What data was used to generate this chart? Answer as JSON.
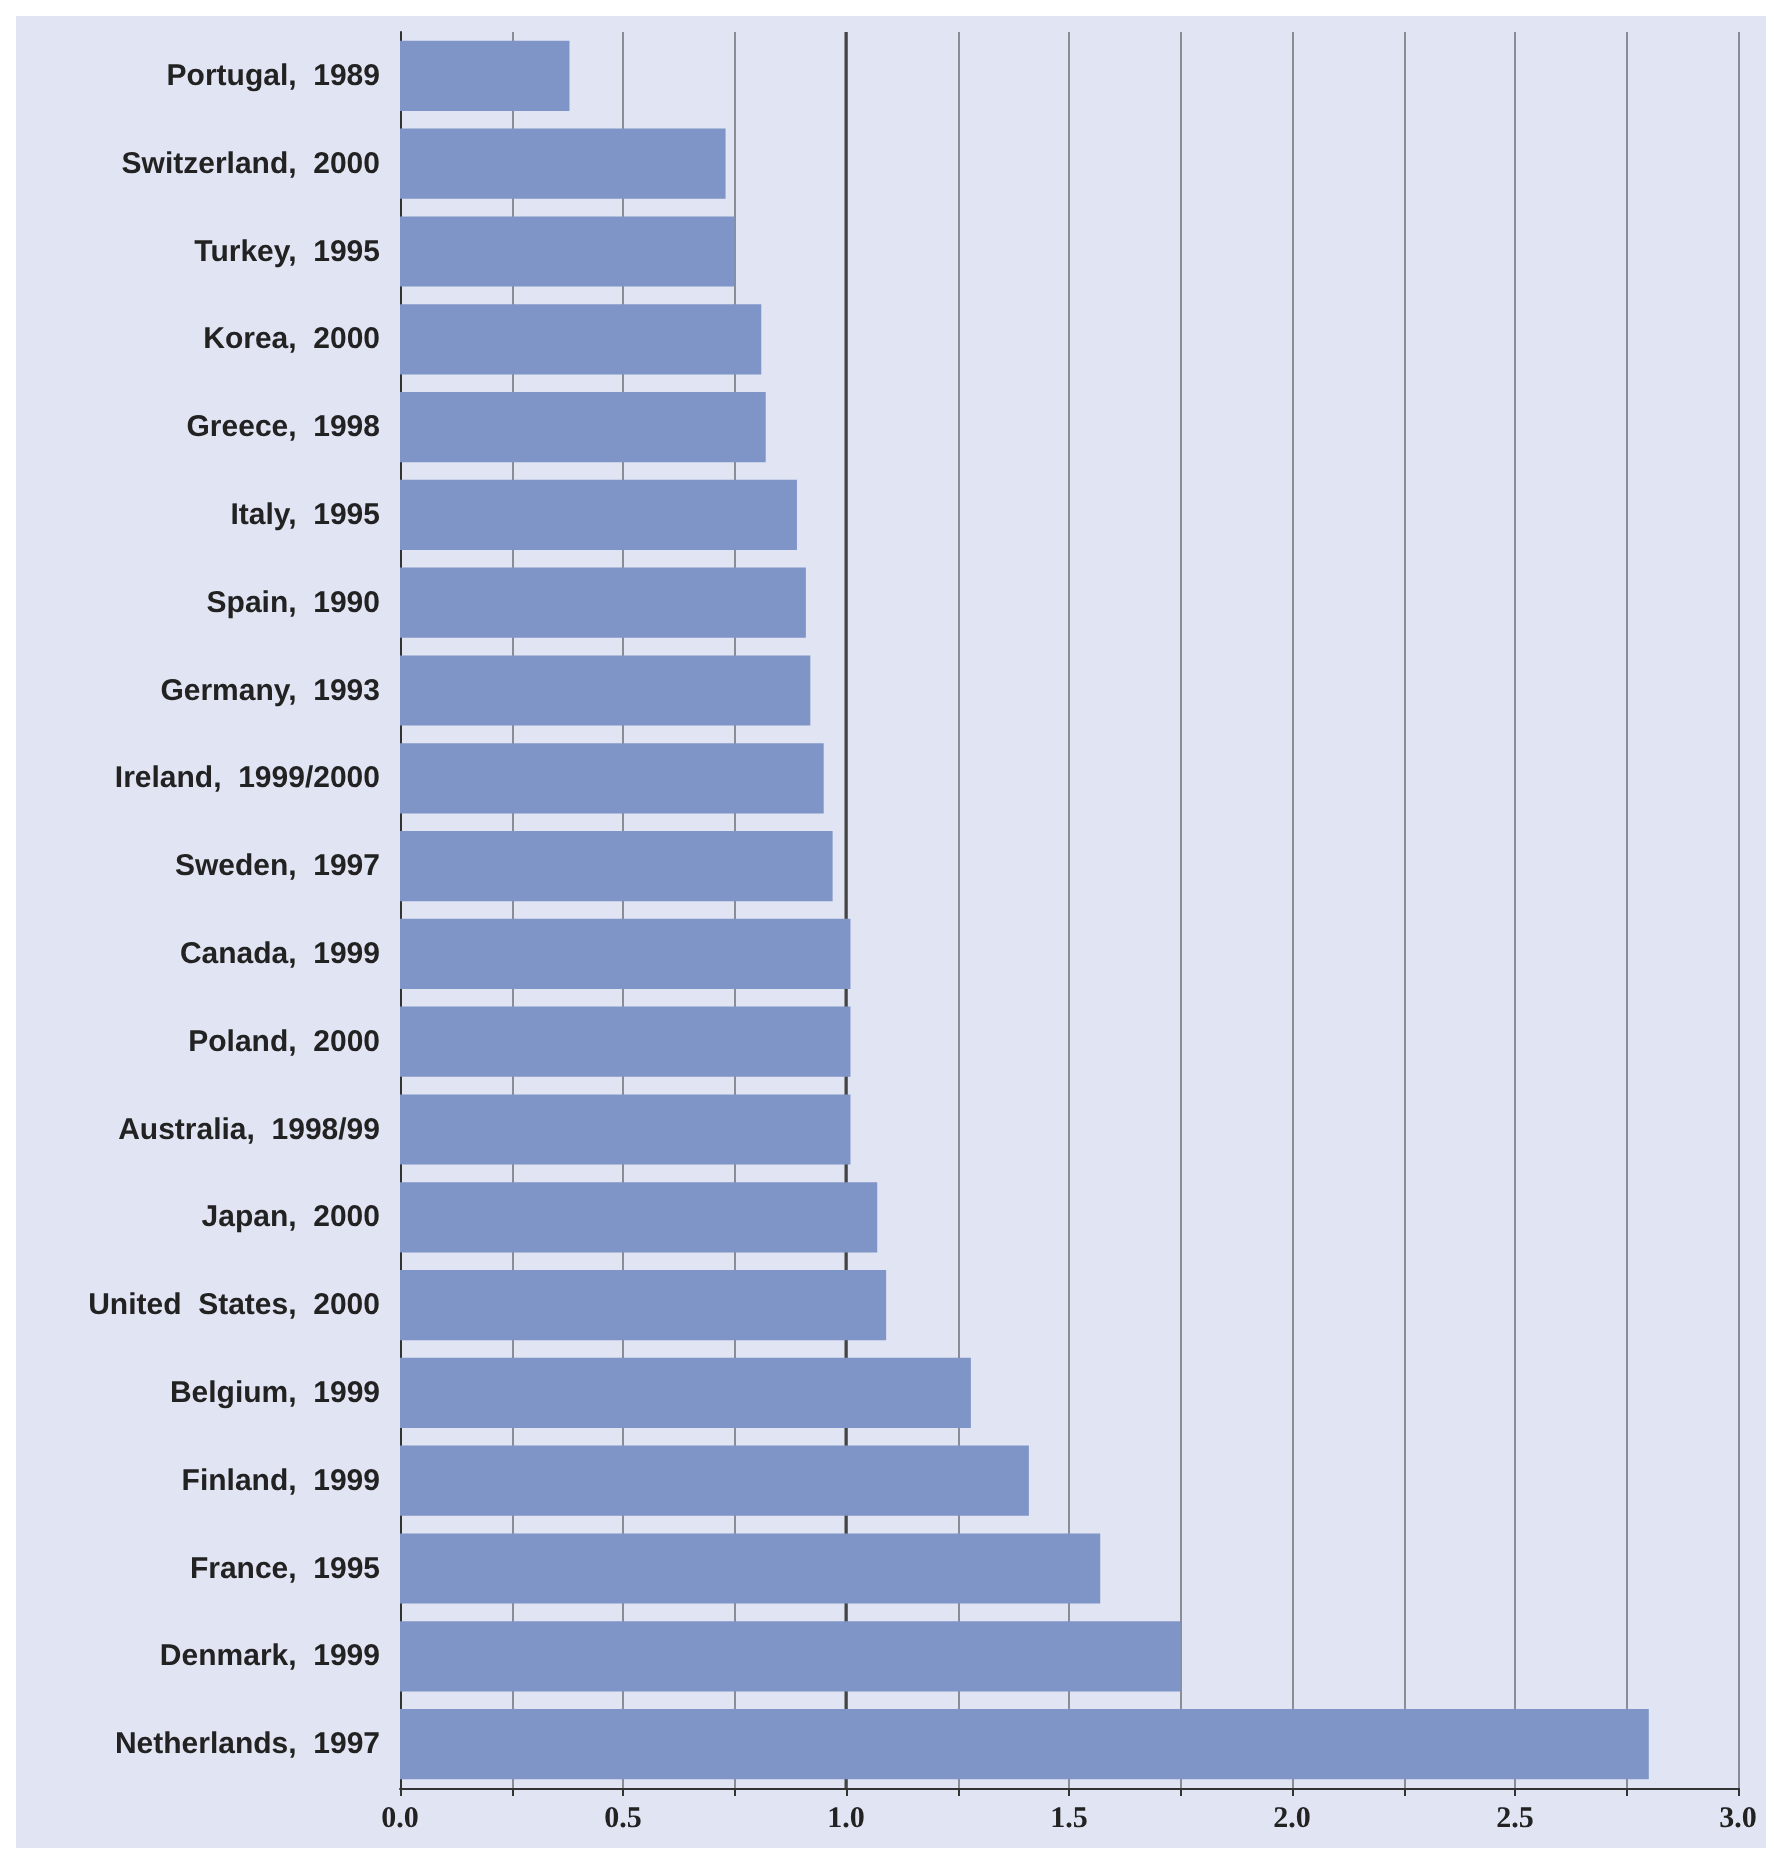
{
  "chart_data": {
    "type": "bar",
    "orientation": "horizontal",
    "categories": [
      "Portugal,  1989",
      "Switzerland,  2000",
      "Turkey,  1995",
      "Korea,  2000",
      "Greece,  1998",
      "Italy,  1995",
      "Spain,  1990",
      "Germany,  1993",
      "Ireland,  1999/2000",
      "Sweden,  1997",
      "Canada,  1999",
      "Poland,  2000",
      "Australia,  1998/99",
      "Japan,  2000",
      "United  States,  2000",
      "Belgium,  1999",
      "Finland,  1999",
      "France,  1995",
      "Denmark,  1999",
      "Netherlands,  1997"
    ],
    "values": [
      0.38,
      0.73,
      0.75,
      0.81,
      0.82,
      0.89,
      0.91,
      0.92,
      0.95,
      0.97,
      1.01,
      1.01,
      1.01,
      1.07,
      1.09,
      1.28,
      1.41,
      1.57,
      1.75,
      2.8
    ],
    "color": "#7f95c8",
    "xlim": [
      0,
      3
    ],
    "xticks": [
      {
        "value": 0,
        "label": "0.0"
      },
      {
        "value": 0.25,
        "label": null
      },
      {
        "value": 0.5,
        "label": "0.5"
      },
      {
        "value": 0.75,
        "label": null
      },
      {
        "value": 1,
        "label": "1.0"
      },
      {
        "value": 1.25,
        "label": null
      },
      {
        "value": 1.5,
        "label": "1.5"
      },
      {
        "value": 1.75,
        "label": null
      },
      {
        "value": 2,
        "label": "2.0"
      },
      {
        "value": 2.25,
        "label": null
      },
      {
        "value": 2.5,
        "label": "2.5"
      },
      {
        "value": 2.75,
        "label": null
      },
      {
        "value": 3,
        "label": "3.0"
      }
    ],
    "grid": "x",
    "ref_lines": [
      {
        "axis": "x",
        "value": 1,
        "color": "#444444"
      }
    ]
  }
}
